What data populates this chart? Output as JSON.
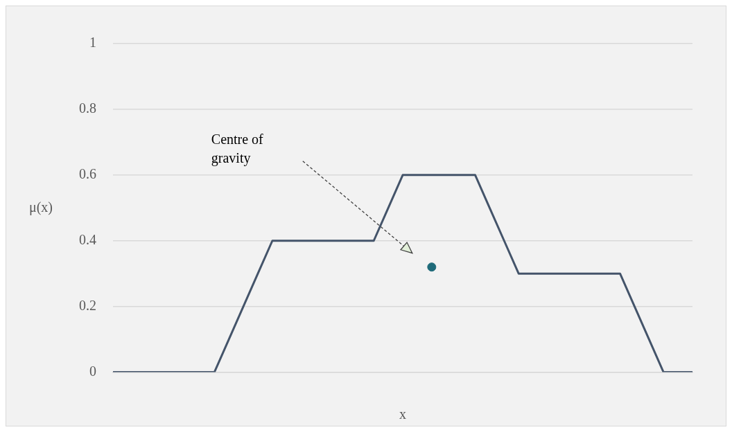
{
  "chart_data": {
    "type": "line",
    "xlabel": "x",
    "ylabel": "μ(x)",
    "categories": [
      null,
      null,
      null,
      null,
      null,
      null,
      null,
      null,
      null,
      null,
      null,
      null,
      null,
      null,
      null,
      null,
      null,
      null,
      null,
      null,
      null,
      null,
      null,
      null,
      null,
      null,
      null,
      null,
      null,
      null,
      null,
      null,
      null,
      null,
      null,
      null,
      null,
      null,
      null,
      null,
      null
    ],
    "ylim": [
      0,
      1
    ],
    "yticks": [
      0,
      0.2,
      0.4,
      0.6,
      0.8,
      1
    ],
    "grid": "y",
    "legend": false,
    "marker": "none",
    "line_style": "solid",
    "series": [
      {
        "color": "#44546a",
        "values": [
          0,
          0,
          0,
          0,
          0,
          0,
          0,
          0,
          0.1,
          0.2,
          0.3,
          0.4,
          0.4,
          0.4,
          0.4,
          0.4,
          0.4,
          0.4,
          0.4,
          0.5,
          0.6,
          0.6,
          0.6,
          0.6,
          0.6,
          0.6,
          0.5,
          0.4,
          0.3,
          0.3,
          0.3,
          0.3,
          0.3,
          0.3,
          0.3,
          0.3,
          0.2,
          0.1,
          0,
          0,
          0
        ]
      },
      {
        "type": "scatter",
        "color": "#1f6b7a",
        "marker": "circle",
        "values": [
          null,
          null,
          null,
          null,
          null,
          null,
          null,
          null,
          null,
          null,
          null,
          null,
          null,
          null,
          null,
          null,
          null,
          null,
          null,
          null,
          null,
          null,
          0.32,
          null,
          null,
          null,
          null,
          null,
          null,
          null,
          null,
          null,
          null,
          null,
          null,
          null,
          null,
          null,
          null,
          null,
          null
        ]
      }
    ],
    "annotations": [
      "Centre of gravity"
    ]
  }
}
